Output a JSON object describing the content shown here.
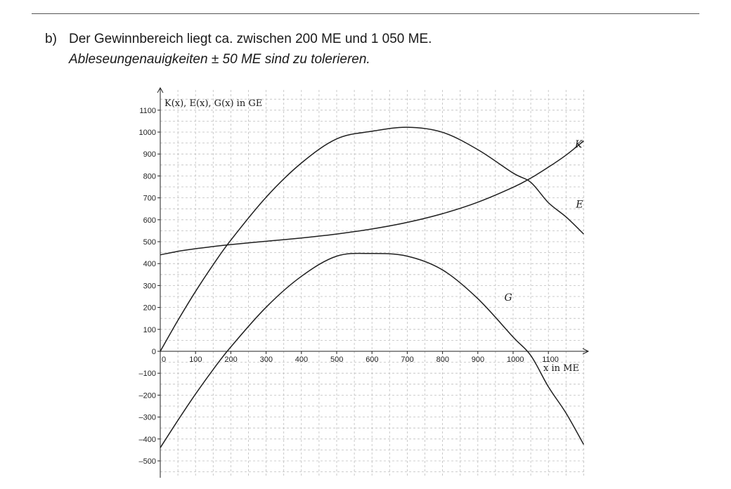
{
  "task": {
    "label": "b)",
    "text": "Der Gewinnbereich liegt ca. zwischen 200 ME und 1 050 ME.",
    "note": "Ableseungenauigkeiten ± 50 ME sind zu tolerieren."
  },
  "chart_data": {
    "type": "line",
    "ylabel": "K(x), E(x), G(x) in GE",
    "xlabel": "x in ME",
    "xlim": [
      0,
      1200
    ],
    "ylim": [
      -550,
      1150
    ],
    "grid": true,
    "grid_style": "dashed",
    "x_ticks": [
      0,
      100,
      200,
      300,
      400,
      500,
      600,
      700,
      800,
      900,
      1000,
      1100
    ],
    "y_ticks": [
      1100,
      1000,
      900,
      800,
      700,
      600,
      500,
      400,
      300,
      200,
      100,
      0,
      -100,
      -200,
      -300,
      -400,
      -500
    ],
    "x_tick_labels": [
      "0",
      "100",
      "200",
      "300",
      "400",
      "500",
      "600",
      "700",
      "800",
      "900",
      "1000",
      "1100"
    ],
    "y_tick_labels": [
      "1100",
      "1000",
      "900",
      "800",
      "700",
      "600",
      "500",
      "400",
      "300",
      "200",
      "100",
      "0",
      "–100",
      "–200",
      "–300",
      "–400",
      "–500"
    ],
    "series": [
      {
        "name": "K",
        "x": [
          0,
          50,
          100,
          150,
          200,
          300,
          400,
          500,
          600,
          700,
          800,
          900,
          1000,
          1050,
          1100,
          1150,
          1200
        ],
        "y": [
          440,
          456,
          468,
          478,
          487,
          502,
          517,
          535,
          558,
          588,
          628,
          680,
          748,
          790,
          840,
          895,
          960
        ]
      },
      {
        "name": "E",
        "x": [
          0,
          50,
          100,
          150,
          200,
          300,
          400,
          500,
          600,
          700,
          800,
          900,
          1000,
          1050,
          1100,
          1150,
          1200
        ],
        "y": [
          0,
          141,
          273,
          395,
          507,
          703,
          859,
          969,
          1004,
          1022,
          999,
          920,
          813,
          771,
          678,
          613,
          535
        ]
      },
      {
        "name": "G",
        "x": [
          0,
          50,
          100,
          150,
          200,
          300,
          400,
          500,
          600,
          700,
          800,
          900,
          1000,
          1050,
          1100,
          1150,
          1200
        ],
        "y": [
          -440,
          -315,
          -195,
          -83,
          20,
          201,
          342,
          434,
          446,
          434,
          371,
          240,
          65,
          -19,
          -162,
          -282,
          -425
        ]
      }
    ],
    "curve_labels": [
      {
        "text": "K",
        "x": 1175,
        "y": 930
      },
      {
        "text": "E",
        "x": 1178,
        "y": 655
      },
      {
        "text": "G",
        "x": 975,
        "y": 230
      }
    ]
  }
}
